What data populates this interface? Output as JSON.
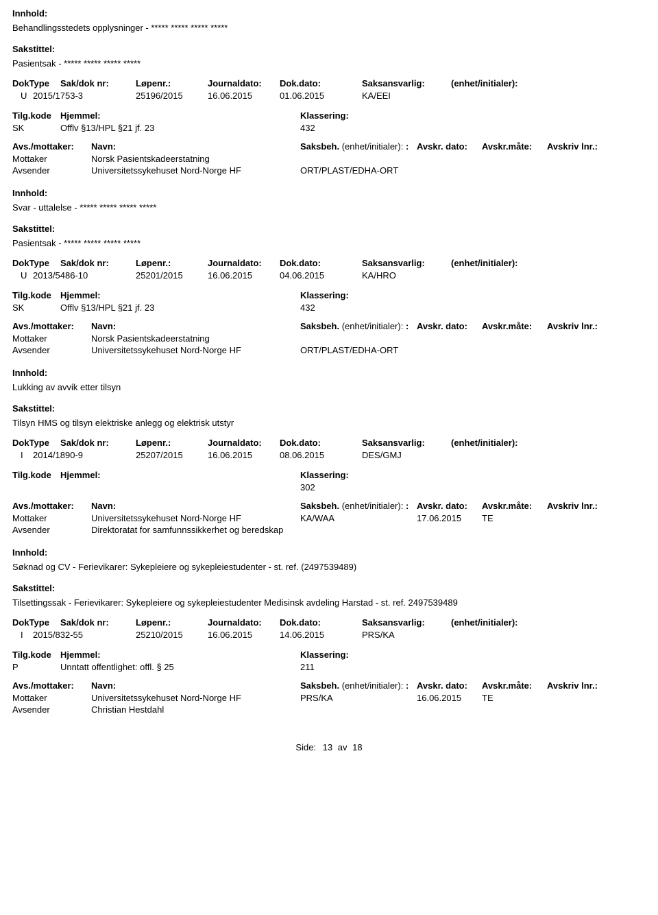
{
  "labels": {
    "innhold": "Innhold:",
    "sakstittel": "Sakstittel:",
    "doktype": "DokType",
    "sakdoknr": "Sak/dok nr:",
    "lopenr": "Løpenr.:",
    "journaldato": "Journaldato:",
    "dokdato": "Dok.dato:",
    "saksansvarlig": "Saksansvarlig:",
    "enhet": "(enhet/initialer):",
    "tilgkode": "Tilg.kode",
    "hjemmel": "Hjemmel:",
    "klassering": "Klassering:",
    "avsmottaker": "Avs./mottaker:",
    "navn": "Navn:",
    "saksbeh": "Saksbeh.",
    "saksbeh_enhet": "(enhet/initialer):",
    "avskrdato": "Avskr. dato:",
    "avskrmate": "Avskr.måte:",
    "avskrivlnr": "Avskriv lnr.:",
    "mottaker": "Mottaker",
    "avsender": "Avsender"
  },
  "records": [
    {
      "innhold": "Behandlingsstedets opplysninger - ***** ***** ***** *****",
      "sakstittel": "Pasientsak - ***** ***** ***** *****",
      "doktype": "U",
      "sakdoknr": "2015/1753-3",
      "lopenr": "25196/2015",
      "journaldato": "16.06.2015",
      "dokdato": "01.06.2015",
      "saksansvarlig": "KA/EEI",
      "tilgkode": "SK",
      "hjemmel": "Offlv §13/HPL §21 jf. 23",
      "klassering": "432",
      "parties": [
        {
          "role": "Mottaker",
          "navn": "Norsk Pasientskadeerstatning",
          "saksbeh": "",
          "dato": "",
          "mate": ""
        },
        {
          "role": "Avsender",
          "navn": "Universitetssykehuset Nord-Norge HF",
          "saksbeh": "ORT/PLAST/EDHA-ORT",
          "dato": "",
          "mate": ""
        }
      ],
      "show_party_cols": false
    },
    {
      "innhold": "Svar - uttalelse - ***** ***** ***** *****",
      "sakstittel": "Pasientsak - ***** ***** ***** *****",
      "doktype": "U",
      "sakdoknr": "2013/5486-10",
      "lopenr": "25201/2015",
      "journaldato": "16.06.2015",
      "dokdato": "04.06.2015",
      "saksansvarlig": "KA/HRO",
      "tilgkode": "SK",
      "hjemmel": "Offlv §13/HPL §21 jf. 23",
      "klassering": "432",
      "parties": [
        {
          "role": "Mottaker",
          "navn": "Norsk Pasientskadeerstatning",
          "saksbeh": "",
          "dato": "",
          "mate": ""
        },
        {
          "role": "Avsender",
          "navn": "Universitetssykehuset Nord-Norge HF",
          "saksbeh": "ORT/PLAST/EDHA-ORT",
          "dato": "",
          "mate": ""
        }
      ],
      "show_party_cols": false
    },
    {
      "innhold": "Lukking av avvik etter tilsyn",
      "sakstittel": "Tilsyn HMS og tilsyn elektriske anlegg og elektrisk utstyr",
      "doktype": "I",
      "sakdoknr": "2014/1890-9",
      "lopenr": "25207/2015",
      "journaldato": "16.06.2015",
      "dokdato": "08.06.2015",
      "saksansvarlig": "DES/GMJ",
      "tilgkode": "",
      "hjemmel": "",
      "klassering": "302",
      "parties": [
        {
          "role": "Mottaker",
          "navn": "Universitetssykehuset Nord-Norge HF",
          "saksbeh": "KA/WAA",
          "dato": "17.06.2015",
          "mate": "TE"
        },
        {
          "role": "Avsender",
          "navn": "Direktoratat for samfunnssikkerhet og beredskap",
          "saksbeh": "",
          "dato": "",
          "mate": ""
        }
      ],
      "show_party_cols": true
    },
    {
      "innhold": "Søknad og CV - Ferievikarer: Sykepleiere og sykepleiestudenter - st. ref. (2497539489)",
      "sakstittel": "Tilsettingssak - Ferievikarer: Sykepleiere og sykepleiestudenter Medisinsk avdeling Harstad - st. ref. 2497539489",
      "doktype": "I",
      "sakdoknr": "2015/832-55",
      "lopenr": "25210/2015",
      "journaldato": "16.06.2015",
      "dokdato": "14.06.2015",
      "saksansvarlig": "PRS/KA",
      "tilgkode": "P",
      "hjemmel": "Unntatt offentlighet: offl. § 25",
      "klassering": "211",
      "parties": [
        {
          "role": "Mottaker",
          "navn": "Universitetssykehuset Nord-Norge HF",
          "saksbeh": "PRS/KA",
          "dato": "16.06.2015",
          "mate": "TE"
        },
        {
          "role": "Avsender",
          "navn": "Christian Hestdahl",
          "saksbeh": "",
          "dato": "",
          "mate": ""
        }
      ],
      "show_party_cols": true
    }
  ],
  "footer": {
    "label": "Side:",
    "page": "13",
    "sep": "av",
    "total": "18"
  }
}
